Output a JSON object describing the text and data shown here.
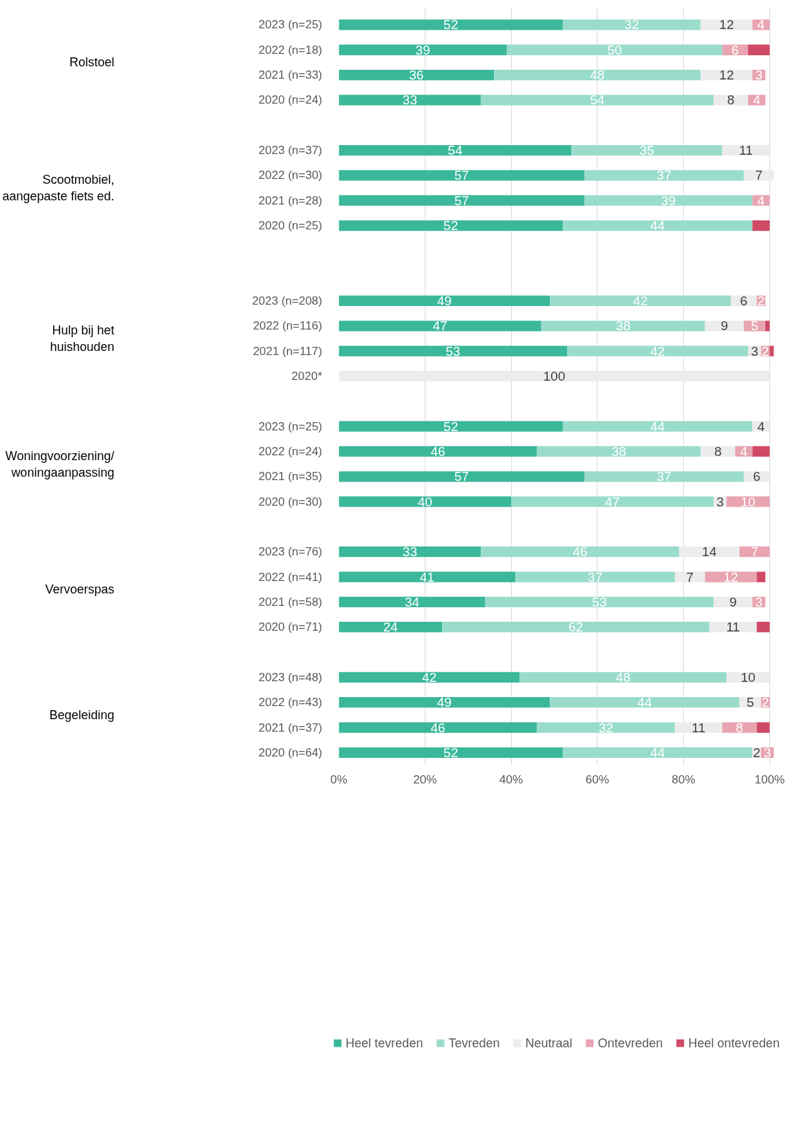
{
  "chart_data": {
    "type": "bar",
    "orientation": "horizontal",
    "stacked": true,
    "categories": [
      "2023 (n=25)",
      "2022 (n=18)",
      "2021 (n=33)",
      "2020 (n=24)",
      null,
      "2023 (n=37)",
      "2022 (n=30)",
      "2021 (n=28)",
      "2020 (n=25)",
      null,
      null,
      "2023 (n=208)",
      "2022 (n=116)",
      "2021 (n=117)",
      "2020*",
      null,
      "2023 (n=25)",
      "2022 (n=24)",
      "2021 (n=35)",
      "2020 (n=30)",
      null,
      "2023 (n=76)",
      "2022 (n=41)",
      "2021 (n=58)",
      "2020 (n=71)",
      null,
      "2023 (n=48)",
      "2022 (n=43)",
      "2021 (n=37)",
      "2020 (n=64)"
    ],
    "series": [
      {
        "name": "Heel tevreden",
        "color": "#3bb89a",
        "values": [
          52,
          39,
          36,
          33,
          null,
          54,
          57,
          57,
          52,
          null,
          null,
          49,
          47,
          53,
          0,
          null,
          52,
          46,
          57,
          40,
          null,
          33,
          41,
          34,
          24,
          null,
          42,
          49,
          46,
          52
        ],
        "value_labels": [
          "52",
          "39",
          "36",
          "33",
          null,
          "54",
          "57",
          "57",
          "52",
          null,
          null,
          "49",
          "47",
          "53",
          null,
          null,
          "52",
          "46",
          "57",
          "40",
          null,
          "33",
          "41",
          "34",
          "24",
          null,
          "42",
          "49",
          "46",
          "52"
        ]
      },
      {
        "name": "Tevreden",
        "color": "#9adccb",
        "values": [
          32,
          50,
          48,
          54,
          null,
          35,
          37,
          39,
          44,
          null,
          null,
          42,
          38,
          42,
          0,
          null,
          44,
          38,
          37,
          47,
          null,
          46,
          37,
          53,
          62,
          null,
          48,
          44,
          32,
          44
        ],
        "value_labels": [
          "32",
          "50",
          "48",
          "54",
          null,
          "35",
          "37",
          "39",
          "44",
          null,
          null,
          "42",
          "38",
          "42",
          null,
          null,
          "44",
          "38",
          "37",
          "47",
          null,
          "46",
          "37",
          "53",
          "62",
          null,
          "48",
          "44",
          "32",
          "44"
        ]
      },
      {
        "name": "Neutraal",
        "color": "#ececec",
        "values": [
          12,
          0,
          12,
          8,
          null,
          11,
          7,
          0,
          0,
          null,
          null,
          6,
          9,
          3,
          100,
          null,
          4,
          8,
          6,
          3,
          null,
          14,
          7,
          9,
          11,
          null,
          10,
          5,
          11,
          2
        ],
        "value_labels": [
          "12",
          null,
          "12",
          "8",
          null,
          "11",
          "7",
          null,
          null,
          null,
          null,
          "6",
          "9",
          "3",
          "100",
          null,
          "4",
          "8",
          "6",
          "3",
          null,
          "14",
          "7",
          "9",
          "11",
          null,
          "10",
          "5",
          "11",
          "2"
        ]
      },
      {
        "name": "Ontevreden",
        "color": "#e8a4b0",
        "values": [
          4,
          6,
          3,
          4,
          null,
          0,
          0,
          4,
          0,
          null,
          null,
          2,
          5,
          2,
          0,
          null,
          0,
          4,
          0,
          10,
          null,
          7,
          12,
          3,
          0,
          null,
          0,
          2,
          8,
          3
        ],
        "value_labels": [
          "4",
          "6",
          "3",
          "4",
          null,
          null,
          null,
          "4",
          null,
          null,
          null,
          "2",
          "5",
          "2",
          null,
          null,
          null,
          "4",
          null,
          "10",
          null,
          "7",
          "12",
          "3",
          null,
          null,
          null,
          "2",
          "8",
          "3"
        ]
      },
      {
        "name": "Heel ontevreden",
        "color": "#cf4a65",
        "values": [
          0,
          5,
          0,
          0,
          null,
          0,
          0,
          0,
          4,
          null,
          null,
          0,
          1,
          1,
          0,
          null,
          0,
          4,
          0,
          0,
          null,
          0,
          2,
          0,
          3,
          null,
          0,
          0,
          3,
          0
        ]
      }
    ],
    "annotations": [
      "Rolstoel",
      "Scootmobiel,\naangepaste fiets ed.",
      "Hulp bij het\nhuishouden",
      "Woningvoorziening/\nwoningaanpassing",
      "Vervoerspas",
      "Begeleiding"
    ],
    "xlim": [
      0,
      101
    ],
    "xticks": [
      {
        "value": 0,
        "label": "0%"
      },
      {
        "value": 20,
        "label": "20%"
      },
      {
        "value": 40,
        "label": "40%"
      },
      {
        "value": 60,
        "label": "60%"
      },
      {
        "value": 80,
        "label": "80%"
      },
      {
        "value": 100,
        "label": "100%"
      }
    ],
    "grid": "x",
    "legend": "bottom"
  }
}
